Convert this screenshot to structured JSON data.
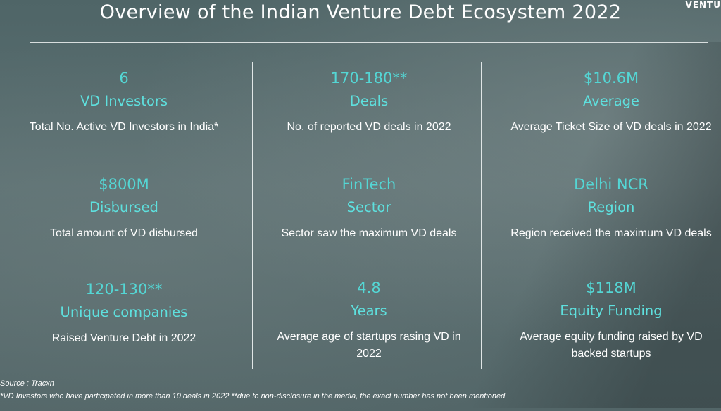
{
  "title": "Overview of the Indian Venture Debt Ecosystem 2022",
  "brand": "VENTU",
  "stats": [
    {
      "value": "6",
      "label": "VD Investors",
      "desc": "Total No. Active VD Investors in India*"
    },
    {
      "value": "170-180**",
      "label": "Deals",
      "desc": "No. of reported VD deals in 2022"
    },
    {
      "value": "$10.6M",
      "label": "Average",
      "desc": "Average Ticket Size of VD deals in 2022"
    },
    {
      "value": "$800M",
      "label": "Disbursed",
      "desc": "Total amount of VD disbursed"
    },
    {
      "value": "FinTech",
      "label": "Sector",
      "desc": "Sector saw the maximum VD deals"
    },
    {
      "value": "Delhi NCR",
      "label": "Region",
      "desc": "Region received the maximum VD deals"
    },
    {
      "value": "120-130**",
      "label": "Unique companies",
      "desc": "Raised Venture Debt in 2022"
    },
    {
      "value": "4.8",
      "label": "Years",
      "desc": "Average age of startups rasing VD in 2022"
    },
    {
      "value": "$118M",
      "label": "Equity Funding",
      "desc": "Average equity funding raised by VD backed startups"
    }
  ],
  "footer": {
    "source": "Source : Tracxn",
    "note": "*VD Investors who have participated in more than 10 deals in 2022 **due to non-disclosure in the media, the exact number has not been mentioned"
  },
  "colors": {
    "accent": "#5ee0de",
    "text": "#ffffff",
    "background": "#5b6e70"
  }
}
